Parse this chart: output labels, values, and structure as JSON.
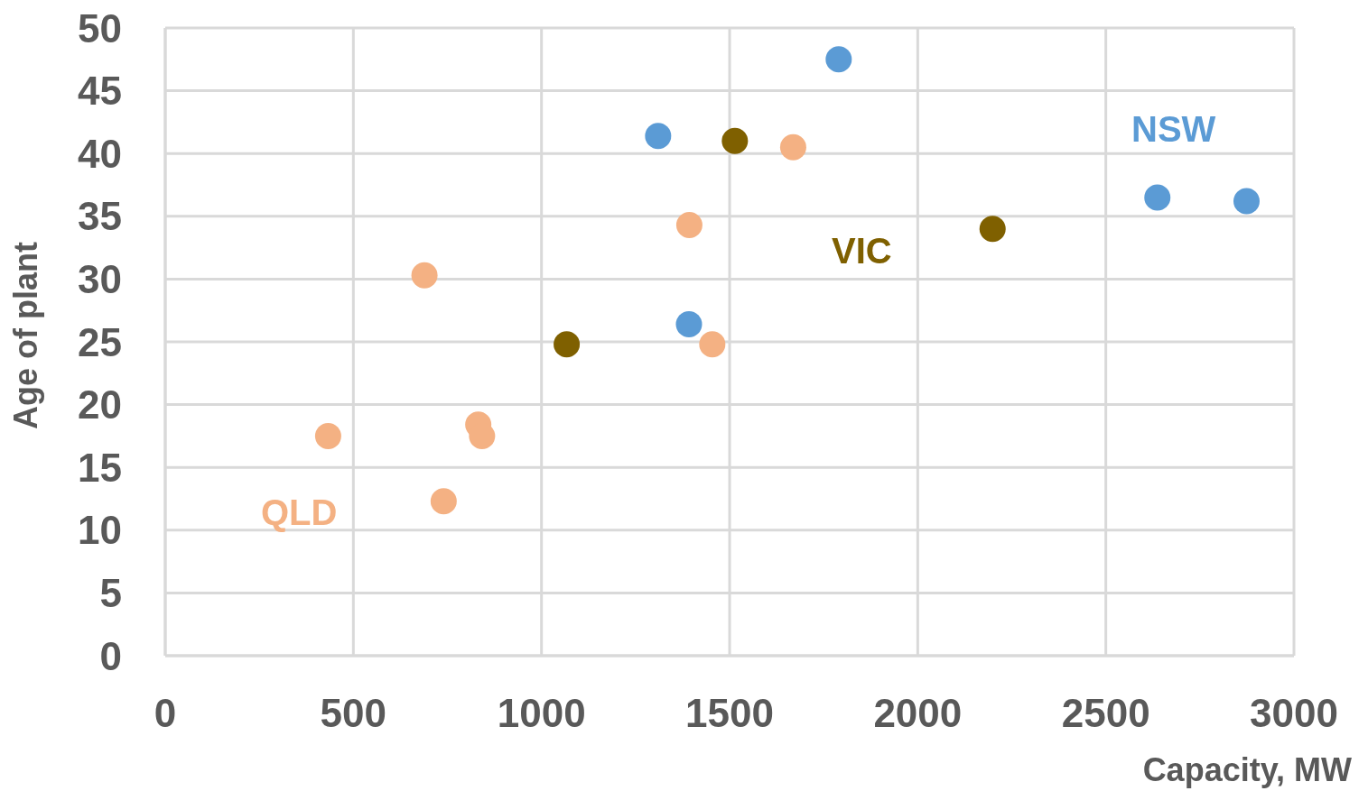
{
  "chart_data": {
    "type": "scatter",
    "xlabel": "Capacity, MW",
    "ylabel": "Age of plant",
    "series": [
      {
        "name": "NSW",
        "color": "#5b9bd5",
        "x": [
          1790,
          1310,
          2637,
          2874,
          1392
        ],
        "values": [
          47.5,
          41.4,
          36.5,
          36.2,
          26.4
        ]
      },
      {
        "name": "VIC",
        "color": "#7f6000",
        "x": [
          1514,
          2199,
          1067
        ],
        "values": [
          41.0,
          34.0,
          24.8
        ]
      },
      {
        "name": "QLD",
        "color": "#f4b183",
        "x": [
          1669,
          1393,
          689,
          1454,
          433,
          832,
          842,
          740
        ],
        "values": [
          40.5,
          34.3,
          30.3,
          24.8,
          17.5,
          18.4,
          17.5,
          12.3
        ]
      }
    ],
    "xlim": [
      0,
      3000
    ],
    "xticks": [
      0,
      500,
      1000,
      1500,
      2000,
      2500,
      3000
    ],
    "ylim": [
      0,
      50
    ],
    "yticks": [
      0,
      5,
      10,
      15,
      20,
      25,
      30,
      35,
      40,
      45,
      50
    ],
    "grid": true,
    "marker": "circle"
  }
}
